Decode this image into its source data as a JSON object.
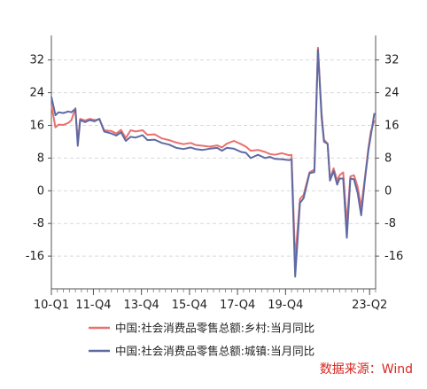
{
  "chart_data": {
    "type": "line",
    "x_categories": [
      "10-Q1",
      "11-Q4",
      "13-Q4",
      "15-Q4",
      "17-Q4",
      "19-Q4",
      "23-Q2"
    ],
    "yticks": [
      32,
      24,
      16,
      8,
      0,
      -8,
      -16
    ],
    "ylim": [
      -24,
      38
    ],
    "xlim": [
      2010.0,
      2023.5
    ],
    "grid": true,
    "legend_position": "bottom",
    "series": [
      {
        "name": "中国:社会消费品零售总额:乡村:当月同比",
        "color": "#e8716e",
        "points": [
          [
            2010.0,
            21
          ],
          [
            2010.17,
            15.5
          ],
          [
            2010.3,
            16.2
          ],
          [
            2010.5,
            16.1
          ],
          [
            2010.7,
            16.6
          ],
          [
            2010.83,
            17.2
          ],
          [
            2011.0,
            20.2
          ],
          [
            2011.1,
            12
          ],
          [
            2011.2,
            17.6
          ],
          [
            2011.4,
            17.2
          ],
          [
            2011.6,
            17.6
          ],
          [
            2011.8,
            17.3
          ],
          [
            2012.0,
            17.5
          ],
          [
            2012.2,
            14.8
          ],
          [
            2012.5,
            14.6
          ],
          [
            2012.7,
            14.0
          ],
          [
            2012.9,
            14.9
          ],
          [
            2013.1,
            12.9
          ],
          [
            2013.3,
            14.8
          ],
          [
            2013.5,
            14.5
          ],
          [
            2013.8,
            14.8
          ],
          [
            2014.0,
            13.7
          ],
          [
            2014.3,
            13.8
          ],
          [
            2014.6,
            12.8
          ],
          [
            2014.9,
            12.4
          ],
          [
            2015.2,
            11.8
          ],
          [
            2015.5,
            11.4
          ],
          [
            2015.8,
            11.7
          ],
          [
            2016.0,
            11.2
          ],
          [
            2016.3,
            11.0
          ],
          [
            2016.6,
            10.8
          ],
          [
            2016.9,
            11.1
          ],
          [
            2017.1,
            10.6
          ],
          [
            2017.3,
            11.5
          ],
          [
            2017.6,
            12.2
          ],
          [
            2017.9,
            11.4
          ],
          [
            2018.1,
            10.8
          ],
          [
            2018.3,
            9.8
          ],
          [
            2018.6,
            10.0
          ],
          [
            2018.9,
            9.5
          ],
          [
            2019.1,
            9.0
          ],
          [
            2019.3,
            8.8
          ],
          [
            2019.6,
            9.2
          ],
          [
            2019.9,
            8.7
          ],
          [
            2020.0,
            8.8
          ],
          [
            2020.15,
            -17
          ],
          [
            2020.35,
            -2
          ],
          [
            2020.5,
            -1
          ],
          [
            2020.75,
            4.5
          ],
          [
            2020.95,
            5.2
          ],
          [
            2021.1,
            35
          ],
          [
            2021.25,
            19
          ],
          [
            2021.35,
            12.5
          ],
          [
            2021.5,
            11.5
          ],
          [
            2021.6,
            3.0
          ],
          [
            2021.75,
            5.5
          ],
          [
            2021.9,
            2.5
          ],
          [
            2022.0,
            3.8
          ],
          [
            2022.15,
            4.5
          ],
          [
            2022.3,
            -8
          ],
          [
            2022.45,
            3.5
          ],
          [
            2022.6,
            3.8
          ],
          [
            2022.75,
            1.0
          ],
          [
            2022.9,
            -4.0
          ],
          [
            2023.05,
            3.0
          ],
          [
            2023.2,
            10.5
          ],
          [
            2023.3,
            14.5
          ],
          [
            2023.45,
            17.2
          ]
        ]
      },
      {
        "name": "中国:社会消费品零售总额:城镇:当月同比",
        "color": "#5e6aa3",
        "points": [
          [
            2010.0,
            23
          ],
          [
            2010.17,
            18.5
          ],
          [
            2010.3,
            19.2
          ],
          [
            2010.5,
            19.0
          ],
          [
            2010.7,
            19.4
          ],
          [
            2010.83,
            19.2
          ],
          [
            2011.0,
            20.0
          ],
          [
            2011.1,
            11
          ],
          [
            2011.2,
            17.3
          ],
          [
            2011.4,
            16.8
          ],
          [
            2011.6,
            17.3
          ],
          [
            2011.8,
            17.0
          ],
          [
            2012.0,
            17.6
          ],
          [
            2012.2,
            14.5
          ],
          [
            2012.5,
            14.0
          ],
          [
            2012.7,
            13.5
          ],
          [
            2012.9,
            14.3
          ],
          [
            2013.1,
            12.2
          ],
          [
            2013.3,
            13.2
          ],
          [
            2013.5,
            13.0
          ],
          [
            2013.8,
            13.6
          ],
          [
            2014.0,
            12.4
          ],
          [
            2014.3,
            12.5
          ],
          [
            2014.6,
            11.7
          ],
          [
            2014.9,
            11.3
          ],
          [
            2015.2,
            10.5
          ],
          [
            2015.5,
            10.2
          ],
          [
            2015.8,
            10.6
          ],
          [
            2016.0,
            10.2
          ],
          [
            2016.3,
            10.0
          ],
          [
            2016.6,
            10.3
          ],
          [
            2016.9,
            10.5
          ],
          [
            2017.1,
            9.8
          ],
          [
            2017.3,
            10.5
          ],
          [
            2017.6,
            10.3
          ],
          [
            2017.9,
            9.5
          ],
          [
            2018.1,
            9.3
          ],
          [
            2018.3,
            8.0
          ],
          [
            2018.6,
            8.8
          ],
          [
            2018.9,
            8.0
          ],
          [
            2019.1,
            8.3
          ],
          [
            2019.3,
            7.8
          ],
          [
            2019.6,
            7.7
          ],
          [
            2019.9,
            7.5
          ],
          [
            2020.0,
            7.7
          ],
          [
            2020.15,
            -21
          ],
          [
            2020.35,
            -3
          ],
          [
            2020.5,
            -1.8
          ],
          [
            2020.75,
            4.3
          ],
          [
            2020.95,
            4.6
          ],
          [
            2021.1,
            34.5
          ],
          [
            2021.25,
            18
          ],
          [
            2021.35,
            12.0
          ],
          [
            2021.5,
            11.5
          ],
          [
            2021.6,
            2.5
          ],
          [
            2021.75,
            4.8
          ],
          [
            2021.9,
            1.5
          ],
          [
            2022.0,
            3.0
          ],
          [
            2022.15,
            3.0
          ],
          [
            2022.3,
            -11.5
          ],
          [
            2022.45,
            3.0
          ],
          [
            2022.6,
            2.8
          ],
          [
            2022.75,
            -0.5
          ],
          [
            2022.9,
            -6.0
          ],
          [
            2023.05,
            2.5
          ],
          [
            2023.2,
            10.0
          ],
          [
            2023.3,
            13.5
          ],
          [
            2023.45,
            19.0
          ]
        ]
      }
    ]
  },
  "source_label": "数据来源：Wind"
}
